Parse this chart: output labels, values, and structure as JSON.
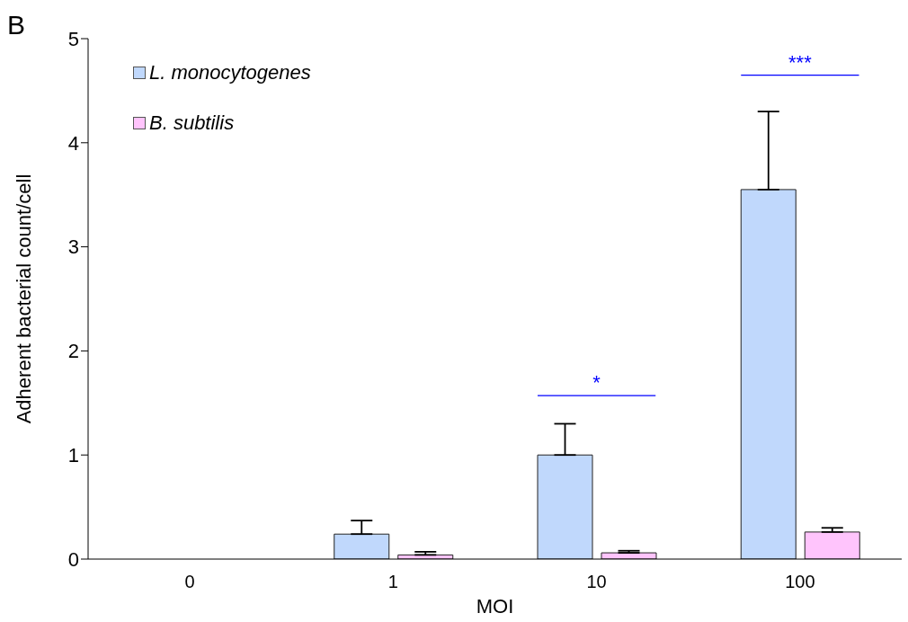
{
  "chart_data": {
    "type": "bar",
    "xlabel": "MOI",
    "ylabel": "Adherent bacterial count/cell",
    "categories": [
      "0",
      "1",
      "10",
      "100"
    ],
    "series": [
      {
        "name": "L. monocytogenes",
        "color": "#c0d8fc",
        "values": [
          0,
          0.24,
          1.0,
          3.55
        ],
        "errors": [
          null,
          [
            0.24,
            0.37
          ],
          [
            1.0,
            1.3
          ],
          [
            3.55,
            4.3
          ]
        ]
      },
      {
        "name": "B. subtilis",
        "color": "#ffc4fc",
        "values": [
          0,
          0.04,
          0.06,
          0.26
        ],
        "errors": [
          null,
          [
            0.04,
            0.07
          ],
          [
            0.06,
            0.08
          ],
          [
            0.26,
            0.3
          ]
        ]
      }
    ],
    "ylim": [
      0,
      5
    ],
    "yticks": [
      0,
      1,
      2,
      3,
      4,
      5
    ],
    "grid": false,
    "legend": "top left",
    "annotations": [
      "B",
      "*",
      "***"
    ]
  }
}
